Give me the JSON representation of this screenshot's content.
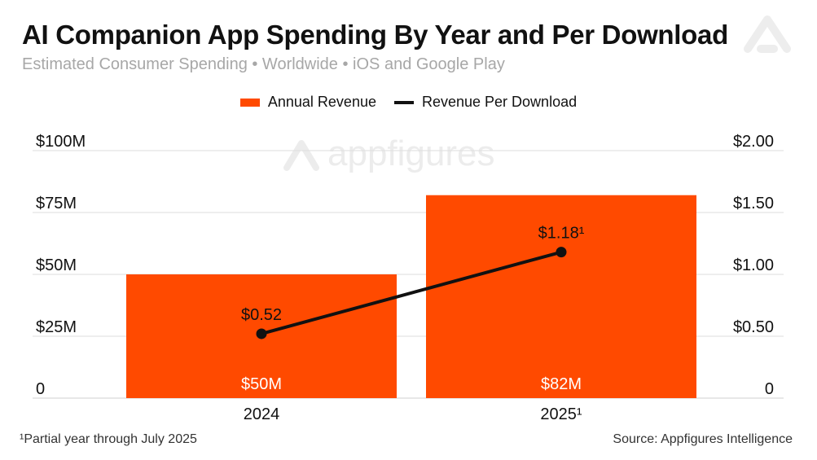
{
  "header": {
    "title": "AI Companion App Spending By Year and Per Download",
    "subtitle": "Estimated Consumer Spending • Worldwide • iOS and Google Play"
  },
  "legend": {
    "items": [
      {
        "label": "Annual Revenue",
        "kind": "bar"
      },
      {
        "label": "Revenue Per Download",
        "kind": "line"
      }
    ]
  },
  "watermark": "appfigures",
  "footer": {
    "footnote": "¹Partial year through July 2025",
    "source": "Source: Appfigures Intelligence"
  },
  "colors": {
    "bar": "#ff4a00",
    "line": "#111111",
    "grid": "#dedede",
    "watermark": "#ececec",
    "logo": "#ededed"
  },
  "chart_data": {
    "type": "bar",
    "title": "AI Companion App Spending By Year and Per Download",
    "subtitle": "Estimated Consumer Spending • Worldwide • iOS and Google Play",
    "categories": [
      "2024",
      "2025¹"
    ],
    "series": [
      {
        "name": "Annual Revenue",
        "type": "bar",
        "axis": "left",
        "values": [
          50,
          82
        ],
        "labels": [
          "$50M",
          "$82M"
        ]
      },
      {
        "name": "Revenue Per Download",
        "type": "line",
        "axis": "right",
        "values": [
          0.52,
          1.18
        ],
        "labels": [
          "$0.52",
          "$1.18¹"
        ]
      }
    ],
    "y_left": {
      "label": "",
      "ylim": [
        0,
        100
      ],
      "ticks": [
        0,
        25,
        50,
        75,
        100
      ],
      "tick_labels": [
        "0",
        "$25M",
        "$50M",
        "$75M",
        "$100M"
      ]
    },
    "y_right": {
      "label": "",
      "ylim": [
        0,
        2
      ],
      "ticks": [
        0,
        0.5,
        1,
        1.5,
        2
      ],
      "tick_labels": [
        "0",
        "$0.50",
        "$1.00",
        "$1.50",
        "$2.00"
      ]
    },
    "xlabel": "",
    "grid": true,
    "legend_position": "top-center"
  }
}
